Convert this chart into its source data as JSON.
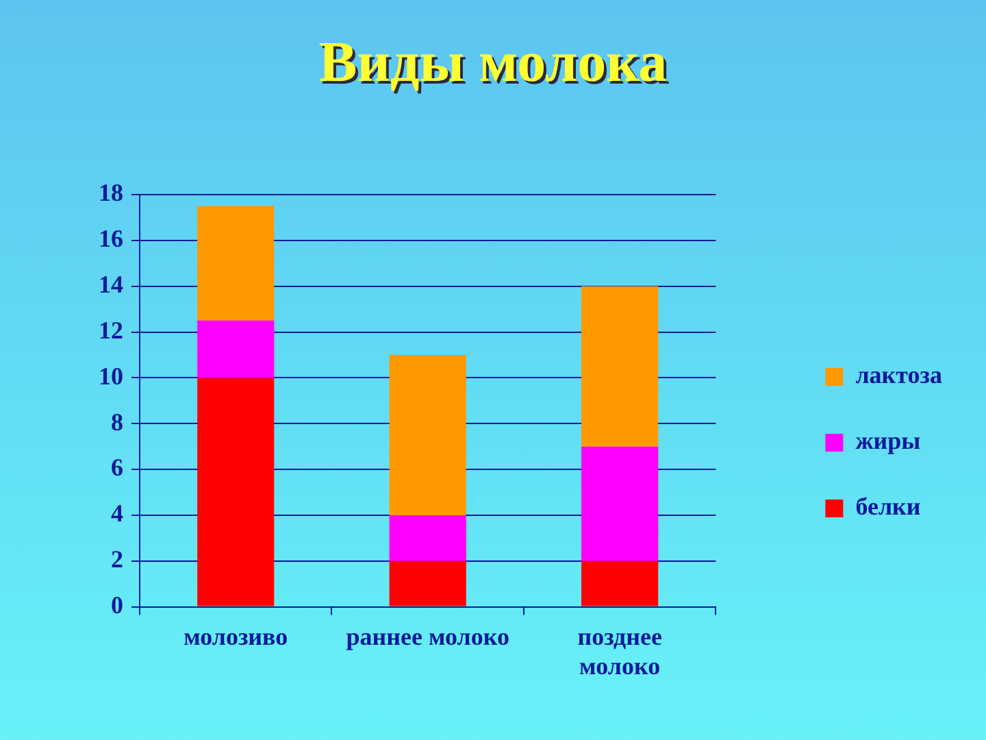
{
  "chart_data": {
    "type": "bar",
    "title": "Виды молока",
    "categories": [
      "молозиво",
      "раннее молоко",
      "позднее молоко"
    ],
    "stacked": true,
    "series": [
      {
        "name": "белки",
        "color": "#ff0000",
        "values": [
          10,
          2,
          2
        ]
      },
      {
        "name": "жиры",
        "color": "#ff00ff",
        "values": [
          2.5,
          2,
          5
        ]
      },
      {
        "name": "лактоза",
        "color": "#ff9900",
        "values": [
          5,
          7,
          7
        ]
      }
    ],
    "ylim": [
      0,
      18
    ],
    "yticks": [
      0,
      2,
      4,
      6,
      8,
      10,
      12,
      14,
      16,
      18
    ],
    "grid": "y",
    "legend": "right"
  }
}
